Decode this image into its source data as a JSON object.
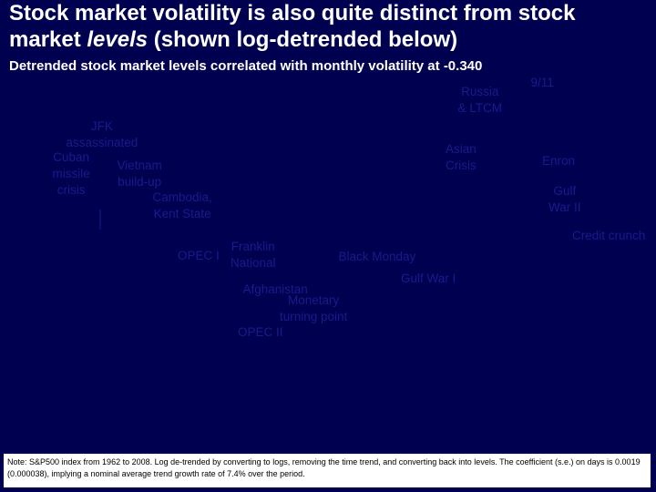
{
  "header": {
    "title_part1": "Stock market volatility is also quite distinct from stock market ",
    "title_italic": "levels",
    "title_part2": " (shown log-detrended below)",
    "subtitle": "Detrended stock market levels correlated with monthly volatility at -0.340"
  },
  "chart_data": {
    "type": "line",
    "title": "",
    "xlabel": "",
    "ylabel": "",
    "series": [],
    "annotations": [
      {
        "text": "9/11"
      },
      {
        "text": "Russia\n& LTCM"
      },
      {
        "text": "JFK\nassassinated"
      },
      {
        "text": "Cuban\nmissile\ncrisis"
      },
      {
        "text": "Vietnam\nbuild-up"
      },
      {
        "text": "Asian\nCrisis"
      },
      {
        "text": "Enron"
      },
      {
        "text": "Cambodia,\nKent State"
      },
      {
        "text": "Gulf\nWar II"
      },
      {
        "text": "Credit crunch"
      },
      {
        "text": "OPEC I"
      },
      {
        "text": "Franklin\nNational"
      },
      {
        "text": "Black Monday"
      },
      {
        "text": "Gulf War I"
      },
      {
        "text": "Afghanistan"
      },
      {
        "text": "Monetary\nturning point"
      },
      {
        "text": "OPEC II"
      }
    ]
  },
  "note": {
    "text": "Note: S&P500 index from 1962 to 2008. Log de-trended by converting to logs, removing the time trend, and converting back into levels. The coefficient (s.e.) on days is 0.0019 (0.000038), implying a nominal average trend growth rate of 7.4% over the period."
  },
  "colors": {
    "background": "#000050",
    "annotation": "#1a1a8c",
    "title": "#ffffff",
    "note_background": "#ffffff"
  }
}
